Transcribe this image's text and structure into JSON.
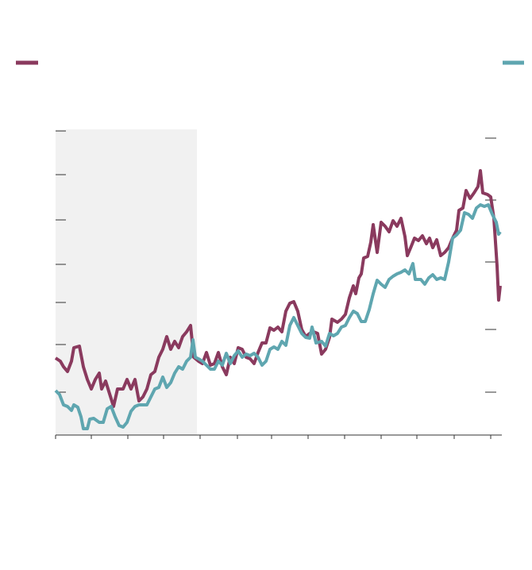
{
  "chart_data": {
    "type": "line",
    "xlim": [
      0,
      562
    ],
    "xticks": [
      0,
      45,
      91,
      136,
      182,
      229,
      272,
      318,
      364,
      410,
      455,
      502,
      548
    ],
    "ylim": [
      0,
      385
    ],
    "yticks": [
      383,
      328,
      271,
      215,
      167,
      114,
      54
    ],
    "y2lim": [
      0,
      385
    ],
    "y2ticks": [
      374,
      296,
      218,
      133,
      54
    ],
    "shade": [
      0,
      178
    ],
    "series": [
      {
        "color": "#8a3a5e",
        "x": [
          0,
          6,
          10,
          15,
          20,
          23,
          30,
          35,
          40,
          45,
          50,
          55,
          58,
          63,
          68,
          73,
          78,
          85,
          90,
          95,
          100,
          105,
          110,
          115,
          120,
          125,
          130,
          135,
          140,
          145,
          150,
          155,
          160,
          165,
          170,
          174,
          180,
          185,
          190,
          195,
          200,
          205,
          210,
          215,
          220,
          225,
          230,
          235,
          240,
          245,
          250,
          255,
          260,
          265,
          270,
          275,
          280,
          285,
          290,
          295,
          300,
          305,
          310,
          315,
          320,
          325,
          330,
          335,
          340,
          345,
          348,
          355,
          360,
          365,
          370,
          375,
          378,
          382,
          385,
          388,
          393,
          397,
          400,
          405,
          410,
          415,
          420,
          425,
          430,
          435,
          440,
          443,
          448,
          452,
          457,
          462,
          467,
          471,
          475,
          480,
          485,
          490,
          495,
          500,
          505,
          508,
          513,
          517,
          522,
          527,
          532,
          535,
          538,
          544,
          548,
          552,
          556,
          558,
          560
        ],
        "values": [
          97,
          93,
          86,
          80,
          93,
          110,
          112,
          86,
          70,
          58,
          70,
          78,
          58,
          68,
          52,
          36,
          58,
          58,
          70,
          58,
          70,
          43,
          48,
          58,
          76,
          80,
          98,
          108,
          124,
          108,
          118,
          110,
          124,
          130,
          138,
          98,
          93,
          90,
          104,
          88,
          90,
          104,
          86,
          76,
          98,
          90,
          110,
          108,
          98,
          96,
          90,
          104,
          116,
          116,
          135,
          132,
          136,
          130,
          156,
          166,
          168,
          156,
          133,
          124,
          128,
          130,
          128,
          102,
          108,
          123,
          146,
          142,
          146,
          152,
          173,
          188,
          178,
          198,
          203,
          223,
          225,
          243,
          265,
          230,
          268,
          263,
          256,
          270,
          263,
          273,
          250,
          226,
          238,
          248,
          245,
          251,
          241,
          248,
          236,
          246,
          226,
          230,
          236,
          248,
          258,
          283,
          286,
          308,
          298,
          305,
          313,
          333,
          305,
          303,
          300,
          273,
          213,
          170,
          188
        ]
      },
      {
        "color": "#5fa6b0",
        "axis": "y2",
        "x": [
          0,
          5,
          10,
          15,
          20,
          23,
          28,
          32,
          35,
          40,
          43,
          48,
          55,
          60,
          65,
          70,
          75,
          80,
          85,
          90,
          95,
          100,
          105,
          110,
          115,
          120,
          125,
          130,
          135,
          140,
          145,
          150,
          155,
          160,
          165,
          170,
          173,
          176,
          180,
          185,
          190,
          195,
          200,
          205,
          210,
          215,
          220,
          225,
          230,
          235,
          240,
          245,
          250,
          255,
          260,
          265,
          270,
          275,
          280,
          285,
          290,
          295,
          300,
          305,
          310,
          315,
          320,
          323,
          328,
          335,
          340,
          345,
          350,
          355,
          360,
          365,
          370,
          375,
          380,
          385,
          390,
          395,
          400,
          405,
          410,
          415,
          420,
          425,
          430,
          435,
          440,
          445,
          450,
          453,
          460,
          465,
          470,
          475,
          480,
          485,
          490,
          495,
          500,
          505,
          510,
          515,
          520,
          525,
          530,
          535,
          540,
          545,
          550,
          555,
          558,
          560
        ],
        "values": [
          56,
          51,
          38,
          36,
          31,
          38,
          35,
          23,
          8,
          8,
          20,
          21,
          16,
          16,
          33,
          36,
          23,
          12,
          10,
          16,
          30,
          36,
          38,
          38,
          38,
          48,
          58,
          60,
          73,
          60,
          66,
          78,
          86,
          83,
          93,
          98,
          120,
          98,
          96,
          93,
          88,
          83,
          83,
          93,
          88,
          103,
          90,
          100,
          106,
          98,
          102,
          100,
          103,
          98,
          88,
          93,
          108,
          111,
          108,
          118,
          113,
          138,
          148,
          138,
          128,
          123,
          122,
          136,
          116,
          118,
          112,
          128,
          125,
          128,
          136,
          138,
          148,
          156,
          153,
          143,
          143,
          158,
          178,
          195,
          190,
          186,
          196,
          200,
          203,
          205,
          208,
          203,
          216,
          196,
          196,
          190,
          198,
          202,
          196,
          198,
          196,
          218,
          248,
          252,
          258,
          280,
          278,
          273,
          286,
          290,
          288,
          290,
          278,
          268,
          253,
          256
        ]
      }
    ]
  }
}
